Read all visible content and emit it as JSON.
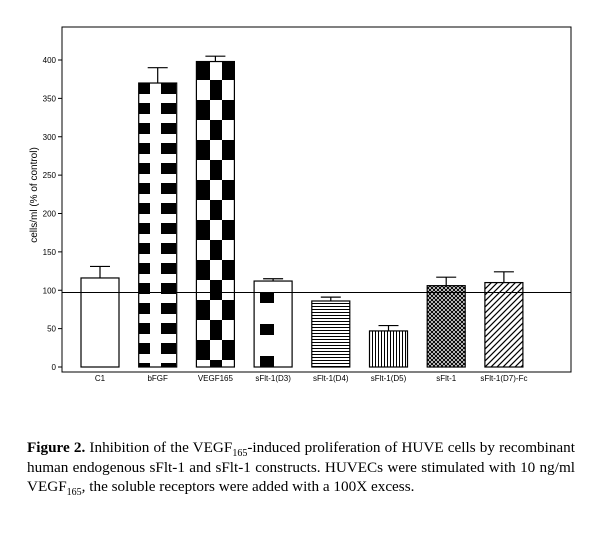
{
  "chart_data": {
    "type": "bar",
    "title": "",
    "xlabel": "",
    "ylabel": "cells/ml (% of control)",
    "ylim": [
      0,
      420
    ],
    "yticks": [
      0,
      50,
      100,
      150,
      200,
      250,
      300,
      350,
      400
    ],
    "reference_line": 97,
    "categories": [
      "C1",
      "bFGF",
      "VEGF165",
      "sFlt-1(D3)",
      "sFlt-1(D4)",
      "sFlt-1(D5)",
      "sFlt-1",
      "sFlt-1(D7)-Fc"
    ],
    "values": [
      116,
      370,
      398,
      112,
      86,
      47,
      106,
      110
    ],
    "errors": [
      15,
      20,
      7,
      3,
      5,
      7,
      11,
      14
    ],
    "patterns": [
      "white",
      "black-squares",
      "checker-large",
      "sparse-squares",
      "horizontal-lines",
      "vertical-lines",
      "crosshatch",
      "diagonal"
    ]
  },
  "caption": {
    "label": "Figure 2.",
    "part1": " Inhibition of the VEGF",
    "sub1": "165",
    "part2": "-induced proliferation of HUVE cells by recombinant human endogenous sFlt-1 and sFlt-1 constructs. HUVECs were stimulated with 10 ng/ml VEGF",
    "sub2": "165",
    "part3": ", the soluble receptors were added with a 100X excess."
  }
}
